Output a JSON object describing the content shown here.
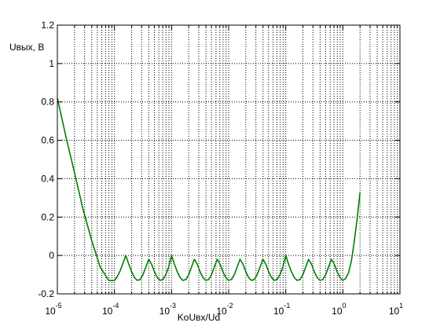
{
  "chart_data": {
    "type": "line",
    "title": "",
    "ylabel": "Uвых, В",
    "xlabel": "KoUвх/Ud",
    "xscale": "log",
    "xlim": [
      1e-05,
      10
    ],
    "ylim": [
      -0.2,
      1.2
    ],
    "grid": true,
    "x_tick_labels": [
      {
        "base": "10",
        "exp": "-5"
      },
      {
        "base": "10",
        "exp": "-4"
      },
      {
        "base": "10",
        "exp": "-3"
      },
      {
        "base": "10",
        "exp": "-2"
      },
      {
        "base": "10",
        "exp": "-1"
      },
      {
        "base": "10",
        "exp": "0"
      },
      {
        "base": "10",
        "exp": "1"
      }
    ],
    "y_tick_labels": [
      "-0.2",
      "0",
      "0.2",
      "0.4",
      "0.6",
      "0.8",
      "1",
      "1.2"
    ],
    "y_ticks": [
      -0.2,
      0,
      0.2,
      0.4,
      0.6,
      0.8,
      1.0,
      1.2
    ],
    "series": [
      {
        "color": "#008000",
        "points": [
          [
            1e-05,
            0.82
          ],
          [
            1.41e-05,
            0.62
          ],
          [
            2e-05,
            0.43
          ],
          [
            2.82e-05,
            0.24
          ],
          [
            3.98e-05,
            0.08
          ],
          [
            5.62e-05,
            -0.06
          ],
          [
            7.94e-05,
            -0.13
          ],
          [
            0.0001,
            -0.13
          ],
          [
            0.000112,
            -0.11
          ],
          [
            0.000126,
            -0.08
          ],
          [
            0.000141,
            -0.04
          ],
          [
            0.000158,
            0.0
          ],
          [
            0.000178,
            -0.045
          ],
          [
            0.0002,
            -0.085
          ],
          [
            0.000224,
            -0.115
          ],
          [
            0.000251,
            -0.13
          ],
          [
            0.000282,
            -0.125
          ],
          [
            0.000316,
            -0.1
          ],
          [
            0.000355,
            -0.06
          ],
          [
            0.000398,
            -0.02
          ],
          [
            0.000447,
            -0.045
          ],
          [
            0.000501,
            -0.085
          ],
          [
            0.000562,
            -0.115
          ],
          [
            0.000631,
            -0.13
          ],
          [
            0.000708,
            -0.125
          ],
          [
            0.000794,
            -0.1
          ],
          [
            0.000891,
            -0.06
          ],
          [
            0.001,
            0.0
          ],
          [
            0.00112,
            -0.045
          ],
          [
            0.00126,
            -0.085
          ],
          [
            0.00141,
            -0.115
          ],
          [
            0.00158,
            -0.13
          ],
          [
            0.00178,
            -0.125
          ],
          [
            0.002,
            -0.1
          ],
          [
            0.00224,
            -0.06
          ],
          [
            0.00251,
            -0.02
          ],
          [
            0.00282,
            -0.045
          ],
          [
            0.00316,
            -0.085
          ],
          [
            0.00355,
            -0.115
          ],
          [
            0.00398,
            -0.13
          ],
          [
            0.00447,
            -0.125
          ],
          [
            0.00501,
            -0.1
          ],
          [
            0.00562,
            -0.06
          ],
          [
            0.00631,
            -0.02
          ],
          [
            0.00708,
            -0.045
          ],
          [
            0.00794,
            -0.085
          ],
          [
            0.00891,
            -0.115
          ],
          [
            0.01,
            -0.13
          ],
          [
            0.0112,
            -0.125
          ],
          [
            0.0126,
            -0.1
          ],
          [
            0.0141,
            -0.06
          ],
          [
            0.0158,
            -0.02
          ],
          [
            0.0178,
            -0.045
          ],
          [
            0.02,
            -0.085
          ],
          [
            0.0224,
            -0.115
          ],
          [
            0.0251,
            -0.13
          ],
          [
            0.0282,
            -0.125
          ],
          [
            0.0316,
            -0.1
          ],
          [
            0.0355,
            -0.06
          ],
          [
            0.0398,
            -0.02
          ],
          [
            0.0447,
            -0.045
          ],
          [
            0.0501,
            -0.085
          ],
          [
            0.0562,
            -0.115
          ],
          [
            0.0631,
            -0.13
          ],
          [
            0.0708,
            -0.125
          ],
          [
            0.0794,
            -0.1
          ],
          [
            0.0891,
            -0.06
          ],
          [
            0.1,
            0.0
          ],
          [
            0.112,
            -0.045
          ],
          [
            0.126,
            -0.085
          ],
          [
            0.141,
            -0.115
          ],
          [
            0.158,
            -0.13
          ],
          [
            0.178,
            -0.125
          ],
          [
            0.2,
            -0.1
          ],
          [
            0.224,
            -0.06
          ],
          [
            0.251,
            -0.02
          ],
          [
            0.282,
            -0.045
          ],
          [
            0.316,
            -0.085
          ],
          [
            0.355,
            -0.115
          ],
          [
            0.398,
            -0.13
          ],
          [
            0.447,
            -0.125
          ],
          [
            0.501,
            -0.1
          ],
          [
            0.562,
            -0.06
          ],
          [
            0.631,
            -0.02
          ],
          [
            0.708,
            -0.045
          ],
          [
            0.794,
            -0.085
          ],
          [
            0.891,
            -0.115
          ],
          [
            1.0,
            -0.13
          ],
          [
            1.12,
            -0.12
          ],
          [
            1.26,
            -0.09
          ],
          [
            1.41,
            -0.03
          ],
          [
            1.58,
            0.07
          ],
          [
            1.78,
            0.19
          ],
          [
            2.0,
            0.33
          ]
        ]
      }
    ]
  }
}
